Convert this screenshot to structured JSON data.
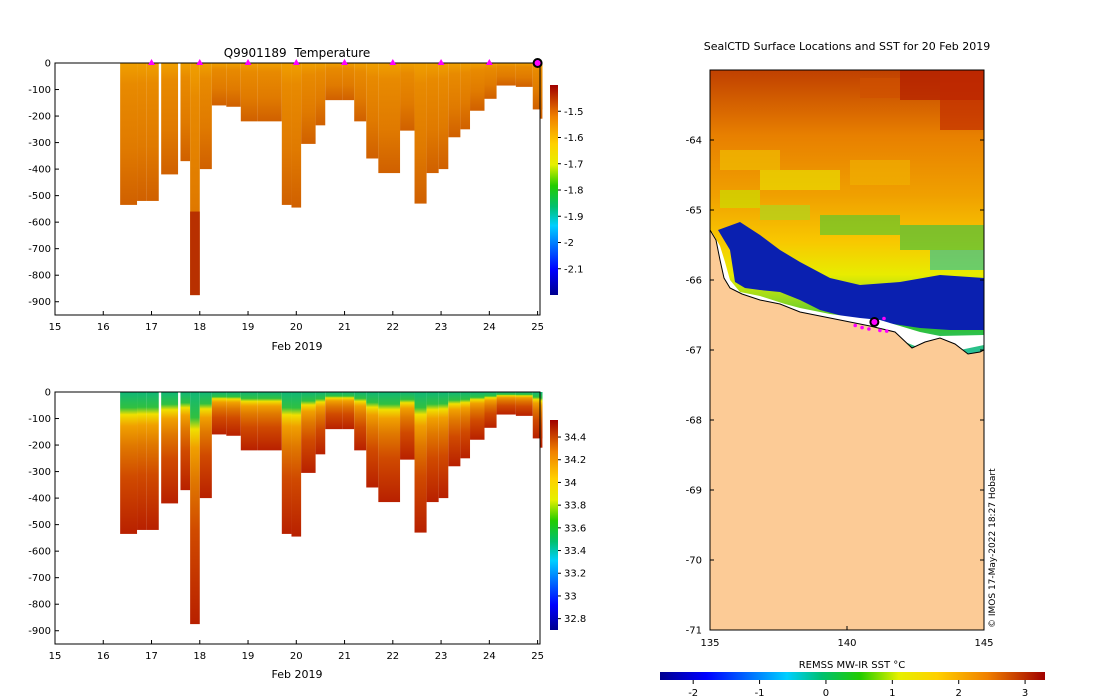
{
  "chart_data": [
    {
      "type": "heatmap",
      "title": "Q9901189  Temperature",
      "xlabel": "Feb 2019",
      "ylabel": "",
      "x_ticks": [
        15,
        16,
        17,
        18,
        19,
        20,
        21,
        22,
        23,
        24,
        25
      ],
      "xlim": [
        15,
        25.05
      ],
      "y_ticks": [
        0,
        -100,
        -200,
        -300,
        -400,
        -500,
        -600,
        -700,
        -800,
        -900
      ],
      "ylim": [
        -950,
        0
      ],
      "colorbar_ticks": [
        -1.5,
        -1.6,
        -1.7,
        -1.8,
        -1.9,
        -2,
        -2.1
      ],
      "colorbar_range": [
        -2.2,
        -1.4
      ],
      "surfacing_markers_day": [
        17,
        18,
        19,
        20,
        21,
        22,
        23,
        24
      ],
      "current_position_day": 25,
      "profiles": [
        {
          "day": 16.35,
          "w": 0.35,
          "depth": 535
        },
        {
          "day": 16.7,
          "w": 0.2,
          "depth": 520
        },
        {
          "day": 16.9,
          "w": 0.25,
          "depth": 520
        },
        {
          "day": 17.2,
          "w": 0.35,
          "depth": 420
        },
        {
          "day": 17.6,
          "w": 0.2,
          "depth": 370
        },
        {
          "day": 17.8,
          "w": 0.2,
          "depth": 875
        },
        {
          "day": 18.0,
          "w": 0.25,
          "depth": 400
        },
        {
          "day": 18.25,
          "w": 0.3,
          "depth": 160
        },
        {
          "day": 18.55,
          "w": 0.3,
          "depth": 165
        },
        {
          "day": 18.85,
          "w": 0.35,
          "depth": 220
        },
        {
          "day": 19.2,
          "w": 0.5,
          "depth": 220
        },
        {
          "day": 19.7,
          "w": 0.2,
          "depth": 535
        },
        {
          "day": 19.9,
          "w": 0.2,
          "depth": 545
        },
        {
          "day": 20.1,
          "w": 0.3,
          "depth": 305
        },
        {
          "day": 20.4,
          "w": 0.2,
          "depth": 235
        },
        {
          "day": 20.6,
          "w": 0.35,
          "depth": 140
        },
        {
          "day": 20.95,
          "w": 0.25,
          "depth": 140
        },
        {
          "day": 21.2,
          "w": 0.25,
          "depth": 220
        },
        {
          "day": 21.45,
          "w": 0.25,
          "depth": 360
        },
        {
          "day": 21.7,
          "w": 0.45,
          "depth": 415
        },
        {
          "day": 22.15,
          "w": 0.3,
          "depth": 255
        },
        {
          "day": 22.45,
          "w": 0.25,
          "depth": 530
        },
        {
          "day": 22.7,
          "w": 0.25,
          "depth": 415
        },
        {
          "day": 22.95,
          "w": 0.2,
          "depth": 400
        },
        {
          "day": 23.15,
          "w": 0.25,
          "depth": 280
        },
        {
          "day": 23.4,
          "w": 0.2,
          "depth": 250
        },
        {
          "day": 23.6,
          "w": 0.3,
          "depth": 180
        },
        {
          "day": 23.9,
          "w": 0.25,
          "depth": 135
        },
        {
          "day": 24.15,
          "w": 0.4,
          "depth": 85
        },
        {
          "day": 24.55,
          "w": 0.35,
          "depth": 90
        },
        {
          "day": 24.9,
          "w": 0.2,
          "depth": 175
        },
        {
          "day": 25.05,
          "w": 0.05,
          "depth": 210
        }
      ]
    },
    {
      "type": "heatmap",
      "title": "",
      "xlabel": "Feb 2019",
      "ylabel": "",
      "x_ticks": [
        15,
        16,
        17,
        18,
        19,
        20,
        21,
        22,
        23,
        24,
        25
      ],
      "xlim": [
        15,
        25.05
      ],
      "y_ticks": [
        0,
        -100,
        -200,
        -300,
        -400,
        -500,
        -600,
        -700,
        -800,
        -900
      ],
      "ylim": [
        -950,
        0
      ],
      "colorbar_ticks": [
        34.4,
        34.2,
        34,
        33.8,
        33.6,
        33.4,
        33.2,
        33,
        32.8
      ],
      "colorbar_range": [
        32.7,
        34.55
      ]
    },
    {
      "type": "heatmap",
      "title": "SealCTD Surface Locations and SST for 20 Feb 2019",
      "xlabel": "",
      "ylabel": "",
      "x_ticks": [
        135,
        140,
        145
      ],
      "xlim": [
        135,
        145
      ],
      "y_ticks": [
        -64,
        -65,
        -66,
        -67,
        -68,
        -69,
        -70,
        -71
      ],
      "ylim": [
        -71,
        -63
      ],
      "colorbar_label": "REMSS MW-IR SST °C",
      "colorbar_ticks": [
        -2,
        -1,
        0,
        1,
        2,
        3
      ],
      "colorbar_range": [
        -2.5,
        3.3
      ],
      "seal_position": {
        "lon": 141.0,
        "lat": -66.6
      },
      "track_points": [
        [
          140.3,
          -66.65
        ],
        [
          140.55,
          -66.68
        ],
        [
          140.8,
          -66.7
        ],
        [
          141.2,
          -66.72
        ],
        [
          141.45,
          -66.73
        ],
        [
          141.35,
          -66.55
        ]
      ],
      "credit": "© IMOS 17-May-2022 18:27 Hobart"
    }
  ]
}
